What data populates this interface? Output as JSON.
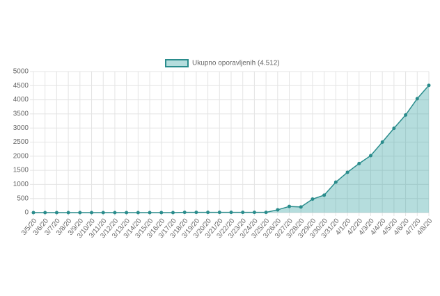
{
  "chart_data": {
    "type": "line",
    "categories": [
      "3/5/20",
      "3/6/20",
      "3/7/20",
      "3/8/20",
      "3/9/20",
      "3/10/20",
      "3/11/20",
      "3/12/20",
      "3/13/20",
      "3/14/20",
      "3/15/20",
      "3/16/20",
      "3/17/20",
      "3/18/20",
      "3/19/20",
      "3/20/20",
      "3/21/20",
      "3/22/20",
      "3/23/20",
      "3/24/20",
      "3/25/20",
      "3/26/20",
      "3/27/20",
      "3/28/20",
      "3/29/20",
      "3/30/20",
      "3/31/20",
      "4/1/20",
      "4/2/20",
      "4/3/20",
      "4/4/20",
      "4/5/20",
      "4/6/20",
      "4/7/20",
      "4/8/20"
    ],
    "series": [
      {
        "name": "Ukupno oporavljenih (4.512)",
        "color": "#2a8c8c",
        "fill": "rgba(42,157,157,0.35)",
        "values": [
          0,
          0,
          0,
          0,
          0,
          0,
          0,
          0,
          0,
          0,
          0,
          0,
          0,
          10,
          10,
          10,
          10,
          10,
          10,
          10,
          10,
          100,
          220,
          200,
          480,
          620,
          1080,
          1430,
          1740,
          2020,
          2500,
          2990,
          3460,
          4040,
          4512
        ]
      }
    ],
    "ylim": [
      0,
      5000
    ],
    "yticks": [
      0,
      500,
      1000,
      1500,
      2000,
      2500,
      3000,
      3500,
      4000,
      4500,
      5000
    ],
    "grid": true,
    "area": true
  }
}
